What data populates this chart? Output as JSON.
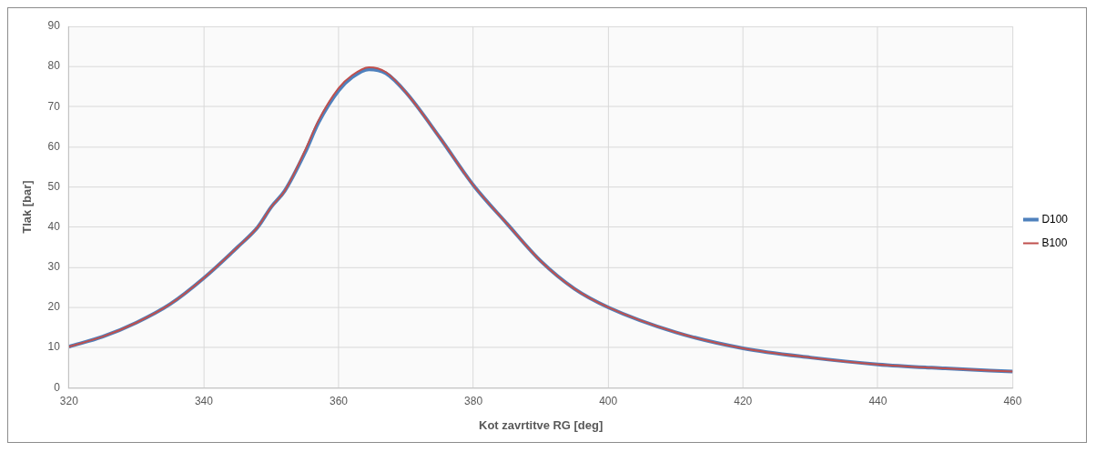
{
  "chart_data": {
    "type": "line",
    "xlabel": "Kot zavrtitve RG [deg]",
    "ylabel": "Tlak [bar]",
    "x": [
      320,
      325,
      330,
      335,
      340,
      345,
      348,
      350,
      352,
      355,
      357,
      360,
      362,
      364.5,
      367,
      370,
      375,
      380,
      385,
      390,
      395,
      400,
      410,
      420,
      430,
      440,
      450,
      460
    ],
    "series": [
      {
        "name": "D100",
        "color": "#4f81bd",
        "values": [
          10.2,
          12.7,
          16.2,
          20.8,
          27.3,
          35,
          40,
          45,
          49,
          58.5,
          66,
          74,
          77.3,
          79.3,
          78.3,
          73.5,
          62.3,
          50.4,
          40.8,
          31.5,
          24.6,
          20,
          13.8,
          9.8,
          7.5,
          5.8,
          4.8,
          4.0
        ]
      },
      {
        "name": "B100",
        "color": "#c0504d",
        "values": [
          10.2,
          12.7,
          16.2,
          20.8,
          27.3,
          35,
          40,
          45,
          49,
          59,
          66.5,
          74.6,
          77.8,
          79.8,
          78.6,
          73.5,
          62.3,
          50.4,
          40.8,
          31.5,
          24.6,
          20,
          13.8,
          9.8,
          7.5,
          5.8,
          4.8,
          4.0
        ]
      }
    ],
    "xlim": [
      320,
      460
    ],
    "xticks": [
      320,
      340,
      360,
      380,
      400,
      420,
      440,
      460
    ],
    "ylim": [
      0,
      90
    ],
    "yticks": [
      0,
      10,
      20,
      30,
      40,
      50,
      60,
      70,
      80,
      90
    ],
    "grid": true,
    "legend": "right",
    "marker": "none",
    "line_style": "solid"
  }
}
